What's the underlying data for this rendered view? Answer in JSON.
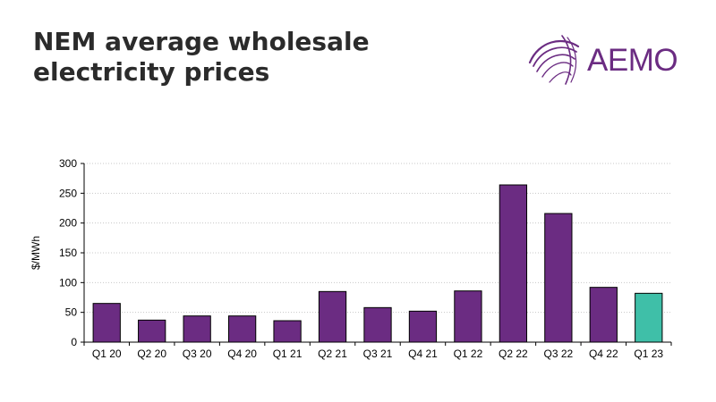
{
  "header": {
    "title_line1": "NEM average wholesale",
    "title_line2": "electricity prices"
  },
  "logo": {
    "text": "AEMO",
    "icon": "aemo-swirl-logo",
    "color": "#6b2c82"
  },
  "chart_data": {
    "type": "bar",
    "title": "NEM average wholesale electricity prices",
    "ylabel": "$/MWh",
    "xlabel": "",
    "ylim": [
      0,
      300
    ],
    "yticks": [
      0,
      50,
      100,
      150,
      200,
      250,
      300
    ],
    "grid": true,
    "categories": [
      "Q1 20",
      "Q2 20",
      "Q3 20",
      "Q4 20",
      "Q1 21",
      "Q2 21",
      "Q3 21",
      "Q4 21",
      "Q1 22",
      "Q2 22",
      "Q3 22",
      "Q4 22",
      "Q1 23"
    ],
    "values": [
      65,
      37,
      44,
      44,
      36,
      85,
      58,
      52,
      86,
      264,
      216,
      92,
      82
    ],
    "colors": {
      "default": "#6b2c82",
      "highlight": "#3fbfa8",
      "highlight_category": "Q1 23"
    }
  }
}
